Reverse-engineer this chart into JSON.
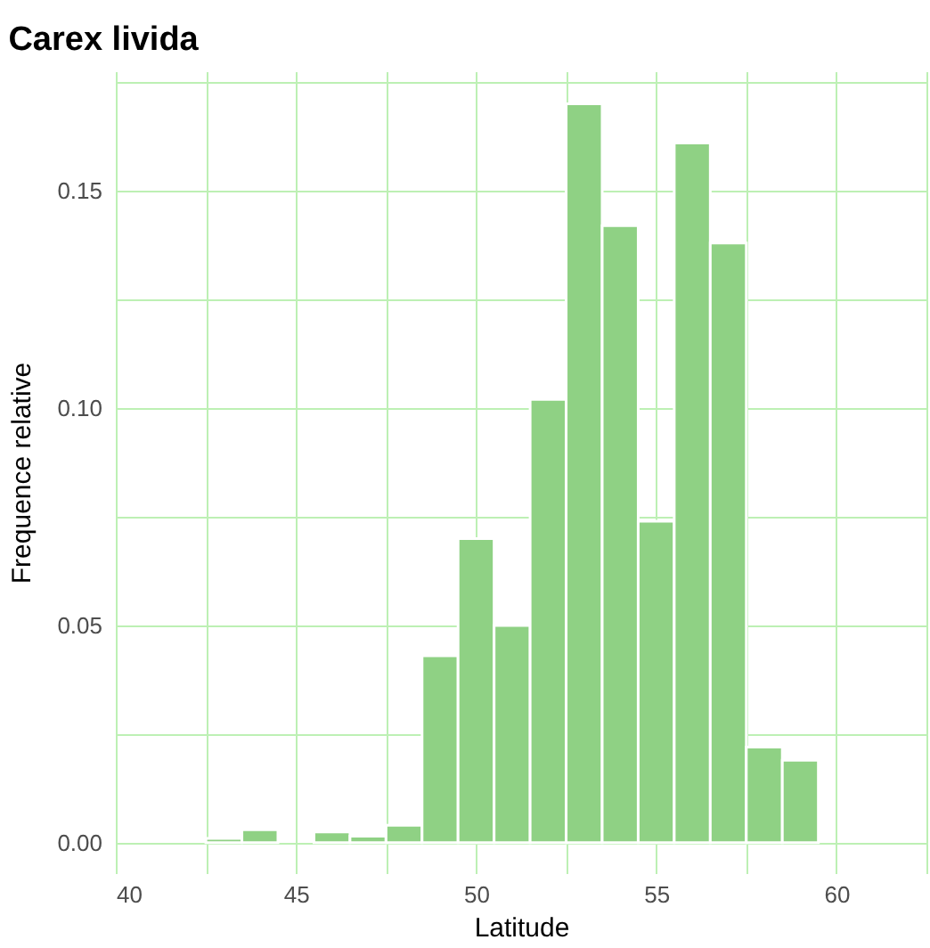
{
  "chart_data": {
    "type": "histogram",
    "title": "Carex livida",
    "xlabel": "Latitude",
    "ylabel": "Frequence relative",
    "bins": [
      42.5,
      43.5,
      44.5,
      45.5,
      46.5,
      47.5,
      48.5,
      49.5,
      50.5,
      51.5,
      52.5,
      53.5,
      54.5,
      55.5,
      56.5,
      57.5,
      58.5,
      59.5
    ],
    "values": [
      0.001,
      0.003,
      0,
      0.0025,
      0.0015,
      0.004,
      0.043,
      0.07,
      0.05,
      0.102,
      0.17,
      0.142,
      0.074,
      0.161,
      0.138,
      0.022,
      0.019
    ],
    "color": "#8fd184",
    "xlim": [
      40,
      62.5
    ],
    "ylim": [
      -0.007,
      0.1775
    ],
    "xticks": [
      40,
      {
        "value": 42.5,
        "label": null
      },
      45,
      {
        "value": 47.5,
        "label": null
      },
      50,
      {
        "value": 52.5,
        "label": null
      },
      55,
      {
        "value": 57.5,
        "label": null
      },
      60,
      {
        "value": 62.5,
        "label": null
      }
    ],
    "yticks": [
      {
        "value": 0,
        "label": "0.00"
      },
      {
        "value": 0.025,
        "label": null
      },
      0.05,
      {
        "value": 0.075,
        "label": null
      },
      {
        "value": 0.1,
        "label": "0.10"
      },
      {
        "value": 0.125,
        "label": null
      },
      0.15,
      {
        "value": 0.175,
        "label": null
      }
    ],
    "grid": true
  }
}
